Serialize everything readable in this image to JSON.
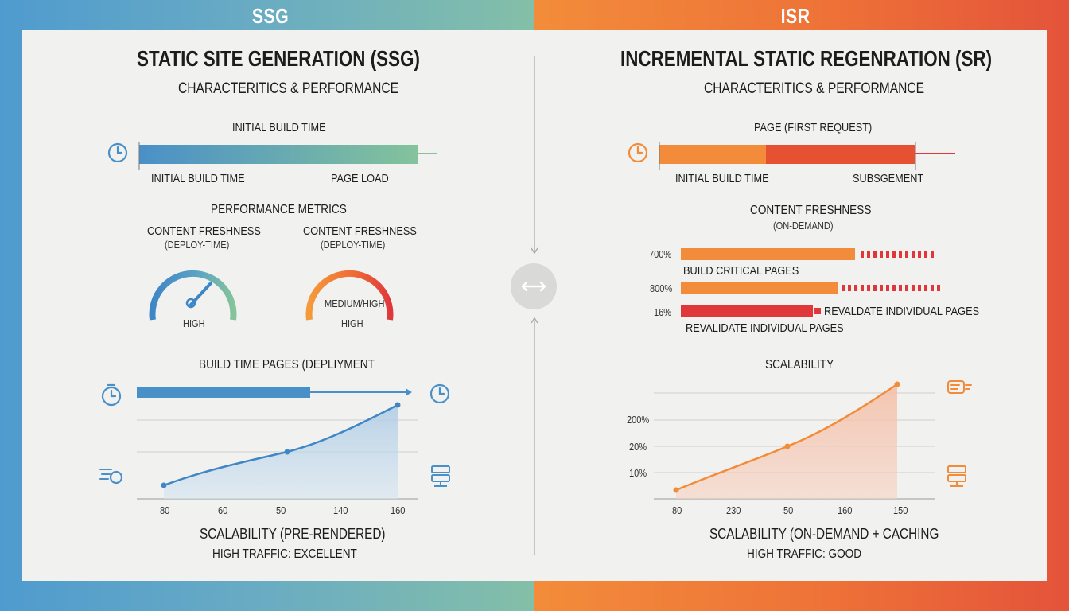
{
  "banner": {
    "left": "SSG",
    "right": "ISR"
  },
  "colors": {
    "ssg_blue": "#4a90c8",
    "ssg_green": "#84c39b",
    "isr_orange": "#f28c3a",
    "isr_red": "#e0383a"
  },
  "ssg": {
    "title": "STATIC SITE GENERATION (SSG)",
    "subtitle": "CHARACTERITICS & PERFORMANCE",
    "build_time": {
      "heading": "INITIAL BUILD TIME",
      "label_left": "INITIAL BUILD TIME",
      "label_right": "PAGE LOAD"
    },
    "metrics": {
      "heading": "PERFORMANCE METRICS",
      "gauge1": {
        "title": "CONTENT FRESHNESS",
        "subtitle": "(DEPLOY-TIME)",
        "value": "HIGH"
      },
      "gauge2": {
        "title": "CONTENT FRESHNESS",
        "subtitle": "(DEPLOY-TIME)",
        "inner": "MEDIUM/HIGH",
        "value": "HIGH"
      }
    },
    "build_pages": {
      "heading": "BUILD TIME PAGES (DEPLIYMENT"
    },
    "chart": {
      "x_ticks": [
        "80",
        "60",
        "50",
        "140",
        "160"
      ]
    },
    "footer": {
      "line1": "SCALABILITY (PRE-RENDERED)",
      "line2": "HIGH TRAFFIC: EXCELLENT"
    }
  },
  "isr": {
    "title": "INCREMENTAL STATIC REGENRATION (SR)",
    "subtitle": "CHARACTERITICS & PERFORMANCE",
    "page_timeline": {
      "heading": "PAGE (FIRST REQUEST)",
      "label_left": "INITIAL BUILD TIME",
      "label_right": "SUBSGEMENT"
    },
    "freshness": {
      "heading": "CONTENT FRESHNESS",
      "subheading": "(ON-DEMAND)",
      "rows": [
        {
          "pct": "700%",
          "label": "BUILD CRITICAL PAGES"
        },
        {
          "pct": "800%",
          "label": ""
        },
        {
          "pct": "16%",
          "label": "REVALDATE INDIVIDUAL PAGES"
        }
      ],
      "below_label": "REVALIDATE INDIVIDUAL PAGES"
    },
    "scalability": {
      "heading": "SCALABILITY"
    },
    "chart": {
      "y_ticks": [
        "200%",
        "20%",
        "10%"
      ],
      "x_ticks": [
        "80",
        "230",
        "50",
        "160",
        "150"
      ]
    },
    "footer": {
      "line1": "SCALABILITY (ON-DEMAND + CACHING",
      "line2": "HIGH TRAFFIC: GOOD"
    }
  }
}
